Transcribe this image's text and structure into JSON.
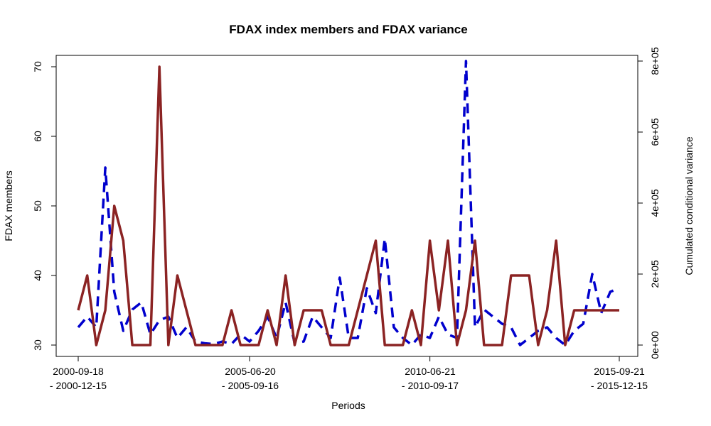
{
  "chart_data": {
    "type": "line",
    "title": "FDAX index members and FDAX variance",
    "xlabel": "Periods",
    "ylabel": "FDAX members",
    "y2label": "Cumulated conditional variance",
    "ylim": [
      30,
      70
    ],
    "y2lim": [
      0,
      800000
    ],
    "y_ticks": [
      "30",
      "40",
      "50",
      "60",
      "70"
    ],
    "y2_ticks": [
      "0e+00",
      "2e+05",
      "4e+05",
      "6e+05",
      "8e+05"
    ],
    "x_ticks": [
      {
        "line1": "2000-09-18",
        "line2": "- 2000-12-15"
      },
      {
        "line1": "2005-06-20",
        "line2": "- 2005-09-16"
      },
      {
        "line1": "2010-06-21",
        "line2": "- 2010-09-17"
      },
      {
        "line1": "2015-09-21",
        "line2": "- 2015-12-15"
      }
    ],
    "x_tick_index": [
      1,
      20,
      40,
      61
    ],
    "periods": 61,
    "series": [
      {
        "axis": "left",
        "color": "#8B2323",
        "style": "solid",
        "values": [
          35,
          40,
          30,
          35,
          50,
          45,
          30,
          30,
          30,
          70,
          30,
          40,
          35,
          30,
          30,
          30,
          30,
          35,
          30,
          30,
          30,
          35,
          30,
          40,
          30,
          35,
          35,
          35,
          30,
          30,
          30,
          35,
          40,
          45,
          30,
          30,
          30,
          35,
          30,
          45,
          35,
          45,
          30,
          35,
          45,
          30,
          30,
          30,
          40,
          40,
          40,
          30,
          35,
          45,
          30,
          35,
          35,
          35,
          35,
          35,
          35
        ]
      },
      {
        "axis": "right",
        "color": "#0000CD",
        "style": "dashed",
        "values": [
          50000,
          80000,
          50000,
          500000,
          150000,
          40000,
          100000,
          120000,
          30000,
          70000,
          80000,
          20000,
          50000,
          10000,
          5000,
          3000,
          10000,
          3000,
          30000,
          10000,
          40000,
          80000,
          20000,
          120000,
          5000,
          10000,
          80000,
          50000,
          20000,
          190000,
          20000,
          20000,
          160000,
          90000,
          300000,
          50000,
          20000,
          0,
          30000,
          20000,
          80000,
          30000,
          20000,
          800000,
          50000,
          100000,
          80000,
          60000,
          50000,
          0,
          20000,
          40000,
          50000,
          20000,
          0,
          40000,
          60000,
          200000,
          90000,
          150000,
          160000
        ]
      }
    ]
  }
}
